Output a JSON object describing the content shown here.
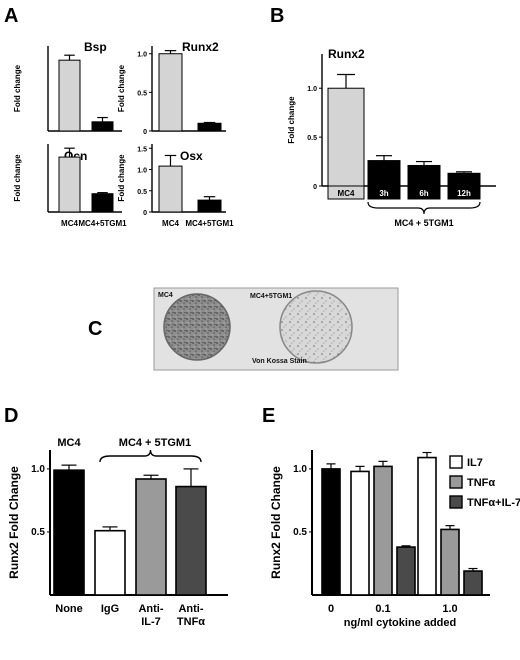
{
  "panel_labels": [
    "A",
    "B",
    "C",
    "D",
    "E"
  ],
  "colors": {
    "light_gray": "#d4d4d4",
    "black": "#000000",
    "white": "#ffffff",
    "mid_gray": "#9a9a9a",
    "dark_gray": "#4a4a4a"
  },
  "chart_data": [
    {
      "id": "A1",
      "type": "bar",
      "title": "Bsp",
      "xlabel": "",
      "ylabel": "Fold change",
      "ylim": [
        0,
        1.2
      ],
      "yticks": [],
      "categories": [
        "",
        ""
      ],
      "values": [
        1.0,
        0.13
      ],
      "errors": [
        0.07,
        0.06
      ],
      "colors": [
        "#d4d4d4",
        "#000000"
      ]
    },
    {
      "id": "A2",
      "type": "bar",
      "title": "Runx2",
      "xlabel": "",
      "ylabel": "Fold change",
      "ylim": [
        0,
        1.1
      ],
      "yticks": [
        0,
        0.5,
        1.0
      ],
      "tick_labels": [
        "0",
        "0.5",
        "1.0"
      ],
      "categories": [
        "",
        ""
      ],
      "values": [
        1.0,
        0.1
      ],
      "errors": [
        0.04,
        0.01
      ],
      "colors": [
        "#d4d4d4",
        "#000000"
      ]
    },
    {
      "id": "A3",
      "type": "bar",
      "title": "Ocn",
      "xlabel": "",
      "ylabel": "Fold change",
      "ylim": [
        0,
        1.3
      ],
      "yticks": [],
      "categories": [
        "MC4",
        "MC4+5TGM1"
      ],
      "values": [
        1.05,
        0.35
      ],
      "errors": [
        0.17,
        0.02
      ],
      "colors": [
        "#d4d4d4",
        "#000000"
      ]
    },
    {
      "id": "A4",
      "type": "bar",
      "title": "Osx",
      "xlabel": "",
      "ylabel": "Fold change",
      "ylim": [
        0,
        1.6
      ],
      "yticks": [
        0,
        0.5,
        1.0,
        1.5
      ],
      "tick_labels": [
        "0",
        "0.5",
        "1.0",
        "1.5"
      ],
      "categories": [
        "MC4",
        "MC4+5TGM1"
      ],
      "values": [
        1.08,
        0.28
      ],
      "errors": [
        0.25,
        0.08
      ],
      "colors": [
        "#d4d4d4",
        "#000000"
      ]
    },
    {
      "id": "B",
      "type": "bar",
      "title": "Runx2",
      "xlabel": "",
      "ylabel": "Fold change",
      "ylim": [
        0,
        1.35
      ],
      "yticks": [
        0,
        0.5,
        1.0
      ],
      "tick_labels": [
        "0",
        "0.5",
        "1.0"
      ],
      "categories": [
        "MC4",
        "3h",
        "6h",
        "12h"
      ],
      "values": [
        1.0,
        0.26,
        0.21,
        0.13
      ],
      "errors": [
        0.14,
        0.05,
        0.04,
        0.015
      ],
      "colors": [
        "#d4d4d4",
        "#000000",
        "#000000",
        "#000000"
      ],
      "annotation": "MC4 + 5TGM1"
    },
    {
      "id": "D",
      "type": "bar",
      "title": "",
      "xlabel": "",
      "ylabel": "Runx2  Fold  Change",
      "ylim": [
        0,
        1.15
      ],
      "yticks": [
        0.5,
        1.0
      ],
      "tick_labels": [
        "0.5",
        "1.0"
      ],
      "categories": [
        "None",
        "IgG",
        "Anti-IL-7",
        "Anti-TNFα"
      ],
      "category_lines": [
        [
          "None"
        ],
        [
          "IgG"
        ],
        [
          "Anti-",
          "IL-7"
        ],
        [
          "Anti-",
          "TNFα"
        ]
      ],
      "values": [
        0.99,
        0.51,
        0.92,
        0.86
      ],
      "errors": [
        0.04,
        0.03,
        0.03,
        0.14
      ],
      "colors": [
        "#000000",
        "#ffffff",
        "#9a9a9a",
        "#4a4a4a"
      ],
      "annotations": [
        "MC4",
        "MC4 + 5TGM1"
      ]
    },
    {
      "id": "E",
      "type": "bar",
      "title": "",
      "xlabel": "ng/ml cytokine added",
      "ylabel": "Runx2  Fold  Change",
      "ylim": [
        0,
        1.15
      ],
      "yticks": [
        0.5,
        1.0
      ],
      "tick_labels": [
        "0.5",
        "1.0"
      ],
      "groups": [
        "0",
        "0.1",
        "1.0"
      ],
      "control_value": 1.0,
      "control_error": 0.04,
      "series": [
        {
          "name": "IL7",
          "color": "#ffffff",
          "values": [
            0.98,
            1.09
          ],
          "errors": [
            0.04,
            0.04
          ]
        },
        {
          "name": "TNFα",
          "color": "#9a9a9a",
          "values": [
            1.02,
            0.52
          ],
          "errors": [
            0.04,
            0.03
          ]
        },
        {
          "name": "TNFα+IL-7",
          "color": "#4a4a4a",
          "values": [
            0.38,
            0.19
          ],
          "errors": [
            0.01,
            0.02
          ]
        }
      ]
    }
  ],
  "photo": {
    "labels": [
      "MC4",
      "MC4+5TGM1",
      "Von Kossa Stain"
    ]
  }
}
